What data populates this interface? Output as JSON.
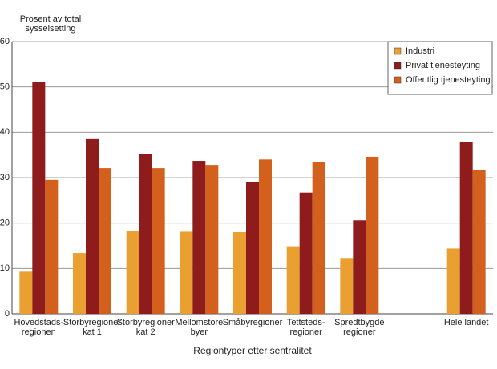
{
  "chart_data": {
    "type": "bar",
    "y_label": "Prosent av total\nsysselsetting",
    "x_label": "Regiontyper etter sentralitet",
    "categories": [
      "Hovedstads-\nregionen",
      "Storbyregioner\nkat 1",
      "Storbyregioner\nkat 2",
      "Mellomstore\nbyer",
      "Småbyregioner",
      "Tettsteds-\nregioner",
      "Spredtbygde\nregioner",
      null,
      "Hele landet"
    ],
    "series": [
      {
        "name": "Industri",
        "color": "#e9a030",
        "values": [
          9.3,
          13.4,
          18.3,
          18.1,
          18.0,
          14.9,
          12.3,
          null,
          14.4
        ]
      },
      {
        "name": "Privat tjenesteyting",
        "color": "#8e1c1c",
        "values": [
          51.0,
          38.5,
          35.2,
          33.7,
          29.1,
          26.7,
          20.6,
          null,
          37.8
        ]
      },
      {
        "name": "Offentlig tjenesteyting",
        "color": "#d4601e",
        "values": [
          29.5,
          32.1,
          32.1,
          32.8,
          34.0,
          33.5,
          34.6,
          null,
          31.6
        ]
      }
    ],
    "ylim": [
      0,
      60
    ],
    "yticks": [
      0,
      10,
      20,
      30,
      40,
      50,
      60
    ],
    "grid": true,
    "legend": "top-right"
  }
}
